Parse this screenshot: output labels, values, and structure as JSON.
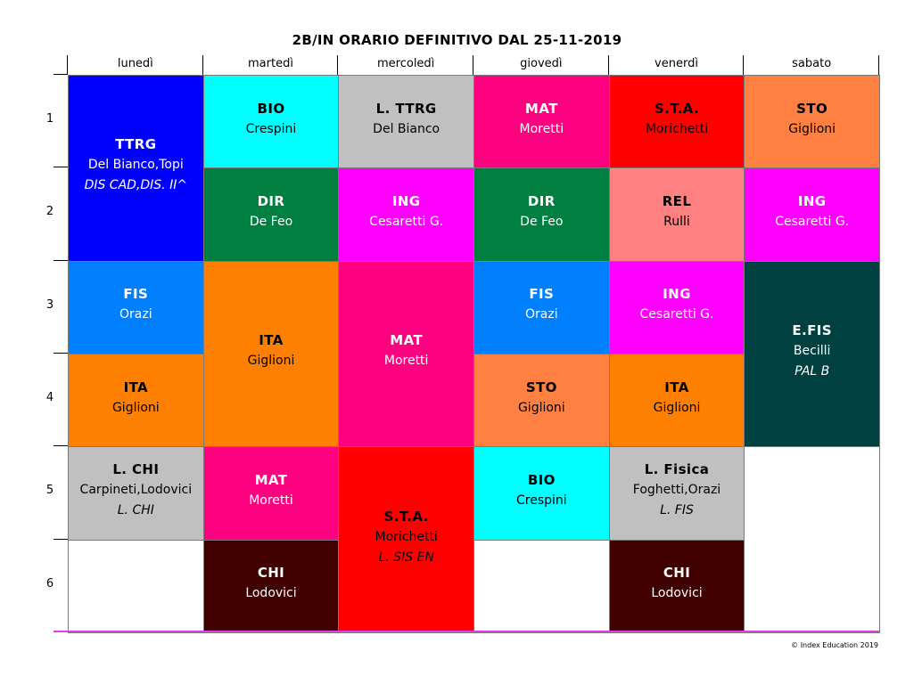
{
  "title": "2B/IN ORARIO DEFINITIVO DAL 25-11-2019",
  "days": [
    "lunedì",
    "martedì",
    "mercoledì",
    "giovedì",
    "venerdì",
    "sabato"
  ],
  "hours": [
    "1",
    "2",
    "3",
    "4",
    "5",
    "6"
  ],
  "lessons": [
    {
      "day": 0,
      "start": 0,
      "span": 2,
      "subject": "TTRG",
      "teacher": "Del Bianco,Topi",
      "room": "DIS CAD,DIS. II^",
      "bg": "#0000ff",
      "fg": "#ffffff"
    },
    {
      "day": 0,
      "start": 2,
      "span": 1,
      "subject": "FIS",
      "teacher": "Orazi",
      "room": "",
      "bg": "#0080ff",
      "fg": "#ffffff"
    },
    {
      "day": 0,
      "start": 3,
      "span": 1,
      "subject": "ITA",
      "teacher": "Giglioni",
      "room": "",
      "bg": "#ff8000",
      "fg": "#000000"
    },
    {
      "day": 0,
      "start": 4,
      "span": 1,
      "subject": "L. CHI",
      "teacher": "Carpineti,Lodovici",
      "room": "L. CHI",
      "bg": "#c0c0c0",
      "fg": "#000000"
    },
    {
      "day": 1,
      "start": 0,
      "span": 1,
      "subject": "BIO",
      "teacher": "Crespini",
      "room": "",
      "bg": "#00ffff",
      "fg": "#000000"
    },
    {
      "day": 1,
      "start": 1,
      "span": 1,
      "subject": "DIR",
      "teacher": "De Feo",
      "room": "",
      "bg": "#008040",
      "fg": "#ffffff"
    },
    {
      "day": 1,
      "start": 2,
      "span": 2,
      "subject": "ITA",
      "teacher": "Giglioni",
      "room": "",
      "bg": "#ff8000",
      "fg": "#000000"
    },
    {
      "day": 1,
      "start": 4,
      "span": 1,
      "subject": "MAT",
      "teacher": "Moretti",
      "room": "",
      "bg": "#ff0080",
      "fg": "#ffffff"
    },
    {
      "day": 1,
      "start": 5,
      "span": 1,
      "subject": "CHI",
      "teacher": "Lodovici",
      "room": "",
      "bg": "#400000",
      "fg": "#ffffff"
    },
    {
      "day": 2,
      "start": 0,
      "span": 1,
      "subject": "L. TTRG",
      "teacher": "Del Bianco",
      "room": "",
      "bg": "#c0c0c0",
      "fg": "#000000"
    },
    {
      "day": 2,
      "start": 1,
      "span": 1,
      "subject": "ING",
      "teacher": "Cesaretti G.",
      "room": "",
      "bg": "#ff00ff",
      "fg": "#ffffff"
    },
    {
      "day": 2,
      "start": 2,
      "span": 2,
      "subject": "MAT",
      "teacher": "Moretti",
      "room": "",
      "bg": "#ff0080",
      "fg": "#ffffff"
    },
    {
      "day": 2,
      "start": 4,
      "span": 2,
      "subject": "S.T.A.",
      "teacher": "Morichetti",
      "room": "L. SIS EN",
      "bg": "#ff0000",
      "fg": "#000000"
    },
    {
      "day": 3,
      "start": 0,
      "span": 1,
      "subject": "MAT",
      "teacher": "Moretti",
      "room": "",
      "bg": "#ff0080",
      "fg": "#ffffff"
    },
    {
      "day": 3,
      "start": 1,
      "span": 1,
      "subject": "DIR",
      "teacher": "De Feo",
      "room": "",
      "bg": "#008040",
      "fg": "#ffffff"
    },
    {
      "day": 3,
      "start": 2,
      "span": 1,
      "subject": "FIS",
      "teacher": "Orazi",
      "room": "",
      "bg": "#0080ff",
      "fg": "#ffffff"
    },
    {
      "day": 3,
      "start": 3,
      "span": 1,
      "subject": "STO",
      "teacher": "Giglioni",
      "room": "",
      "bg": "#ff8040",
      "fg": "#000000"
    },
    {
      "day": 3,
      "start": 4,
      "span": 1,
      "subject": "BIO",
      "teacher": "Crespini",
      "room": "",
      "bg": "#00ffff",
      "fg": "#000000"
    },
    {
      "day": 4,
      "start": 0,
      "span": 1,
      "subject": "S.T.A.",
      "teacher": "Morichetti",
      "room": "",
      "bg": "#ff0000",
      "fg": "#000000"
    },
    {
      "day": 4,
      "start": 1,
      "span": 1,
      "subject": "REL",
      "teacher": "Rulli",
      "room": "",
      "bg": "#ff8080",
      "fg": "#000000"
    },
    {
      "day": 4,
      "start": 2,
      "span": 1,
      "subject": "ING",
      "teacher": "Cesaretti G.",
      "room": "",
      "bg": "#ff00ff",
      "fg": "#ffffff"
    },
    {
      "day": 4,
      "start": 3,
      "span": 1,
      "subject": "ITA",
      "teacher": "Giglioni",
      "room": "",
      "bg": "#ff8000",
      "fg": "#000000"
    },
    {
      "day": 4,
      "start": 4,
      "span": 1,
      "subject": "L. Fisica",
      "teacher": "Foghetti,Orazi",
      "room": "L. FIS",
      "bg": "#c0c0c0",
      "fg": "#000000"
    },
    {
      "day": 4,
      "start": 5,
      "span": 1,
      "subject": "CHI",
      "teacher": "Lodovici",
      "room": "",
      "bg": "#400000",
      "fg": "#ffffff"
    },
    {
      "day": 5,
      "start": 0,
      "span": 1,
      "subject": "STO",
      "teacher": "Giglioni",
      "room": "",
      "bg": "#ff8040",
      "fg": "#000000"
    },
    {
      "day": 5,
      "start": 1,
      "span": 1,
      "subject": "ING",
      "teacher": "Cesaretti G.",
      "room": "",
      "bg": "#ff00ff",
      "fg": "#ffffff"
    },
    {
      "day": 5,
      "start": 2,
      "span": 2,
      "subject": "E.FIS",
      "teacher": "Becilli",
      "room": "PAL B",
      "bg": "#004040",
      "fg": "#ffffff"
    }
  ],
  "empty_slots": [
    {
      "day": 0,
      "start": 5,
      "span": 1
    },
    {
      "day": 3,
      "start": 5,
      "span": 1
    },
    {
      "day": 5,
      "start": 4,
      "span": 2
    }
  ],
  "credit": "© Index Education 2019"
}
